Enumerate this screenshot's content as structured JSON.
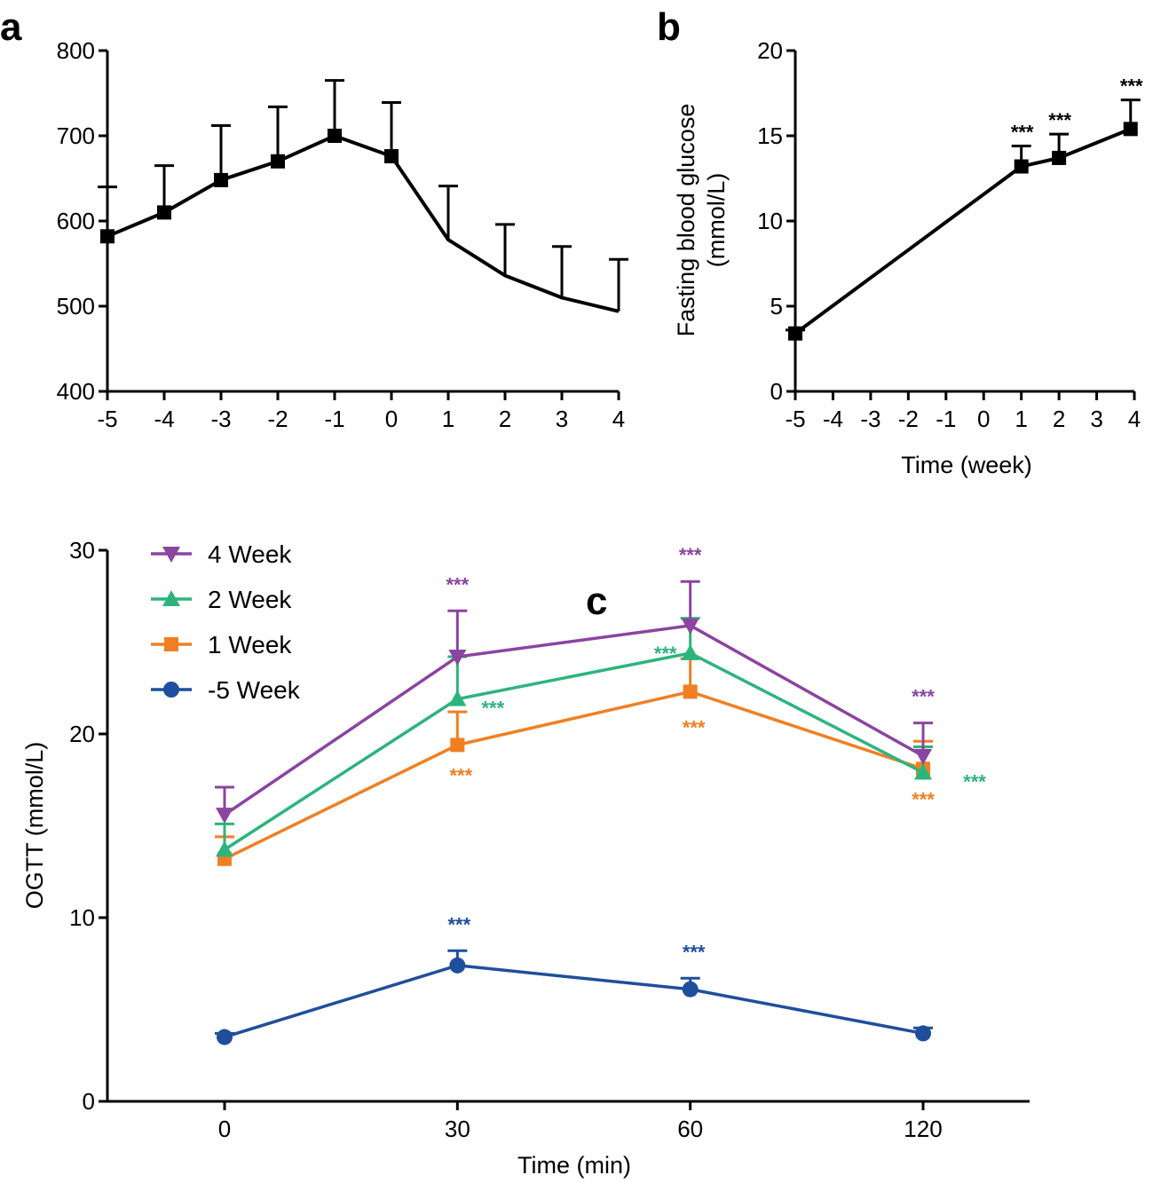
{
  "chart_data": [
    {
      "id": "a",
      "type": "line",
      "panel_label": "a",
      "title": "",
      "xlabel": "",
      "ylabel": "",
      "xlim": [
        -5,
        4
      ],
      "ylim": [
        400,
        800
      ],
      "x_ticks": [
        -5,
        -4,
        -3,
        -2,
        -1,
        0,
        1,
        2,
        3,
        4
      ],
      "y_ticks": [
        400,
        500,
        600,
        700,
        800
      ],
      "x_tick_labels": [
        "-5",
        "-4",
        "-3",
        "-2",
        "-1",
        "0",
        "1",
        "2",
        "3",
        "4"
      ],
      "y_tick_labels": [
        "400",
        "500",
        "600",
        "700",
        "800"
      ],
      "series": [
        {
          "name": "",
          "color": "#000000",
          "marker": "square",
          "points": [
            {
              "x": -5,
              "y": 582,
              "err": 58,
              "marker": true
            },
            {
              "x": -4,
              "y": 610,
              "err": 55,
              "marker": true
            },
            {
              "x": -3,
              "y": 648,
              "err": 64,
              "marker": true
            },
            {
              "x": -2,
              "y": 670,
              "err": 64,
              "marker": true
            },
            {
              "x": -1,
              "y": 700,
              "err": 65,
              "marker": true
            },
            {
              "x": 0,
              "y": 676,
              "err": 63,
              "marker": true
            },
            {
              "x": 1,
              "y": 578,
              "err": 63,
              "marker": false
            },
            {
              "x": 2,
              "y": 536,
              "err": 60,
              "marker": false
            },
            {
              "x": 3,
              "y": 510,
              "err": 60,
              "marker": false
            },
            {
              "x": 4,
              "y": 494,
              "err": 61,
              "marker": false
            }
          ]
        }
      ]
    },
    {
      "id": "b",
      "type": "line",
      "panel_label": "b",
      "title": "",
      "xlabel": "Time (week)",
      "ylabel_lines": [
        "Fasting blood glucose",
        "(mmol/L)"
      ],
      "xlim": [
        -5,
        4
      ],
      "ylim": [
        0,
        20
      ],
      "x_ticks": [
        -5,
        -4,
        -3,
        -2,
        -1,
        0,
        1,
        2,
        3,
        4
      ],
      "y_ticks": [
        0,
        5,
        10,
        15,
        20
      ],
      "x_tick_labels": [
        "-5",
        "-4",
        "-3",
        "-2",
        "-1",
        "0",
        "1",
        "2",
        "3",
        "4"
      ],
      "y_tick_labels": [
        "0",
        "5",
        "10",
        "15",
        "20"
      ],
      "series": [
        {
          "name": "",
          "color": "#000000",
          "marker": "square",
          "points": [
            {
              "x": -5,
              "y": 3.4,
              "err": 0.2,
              "sig": ""
            },
            {
              "x": 1,
              "y": 13.2,
              "err": 1.2,
              "sig": "***"
            },
            {
              "x": 2,
              "y": 13.7,
              "err": 1.4,
              "sig": "***"
            },
            {
              "x": 3.9,
              "y": 15.4,
              "err": 1.7,
              "sig": "***"
            }
          ]
        }
      ]
    },
    {
      "id": "c",
      "type": "line",
      "panel_label": "c",
      "title": "",
      "xlabel": "Time (min)",
      "ylabel": "OGTT (mmol/L)",
      "xlim": [
        -0.5,
        3.5
      ],
      "ylim": [
        0,
        30
      ],
      "categories": [
        "0",
        "30",
        "60",
        "120"
      ],
      "y_ticks": [
        0,
        10,
        20,
        30
      ],
      "y_tick_labels": [
        "0",
        "10",
        "20",
        "30"
      ],
      "series": [
        {
          "name": "4 Week",
          "color": "#8b44a0",
          "marker": "triangle-down",
          "values": [
            15.6,
            24.2,
            25.9,
            18.8
          ],
          "errors": [
            1.5,
            2.5,
            2.4,
            1.8
          ],
          "sig": [
            "",
            "***",
            "***",
            "***"
          ]
        },
        {
          "name": "2 Week",
          "color": "#2db47d",
          "marker": "triangle-up",
          "values": [
            13.7,
            21.9,
            24.4,
            17.9
          ],
          "errors": [
            1.4,
            2.3,
            1.9,
            1.4
          ],
          "sig": [
            "",
            "***",
            "***",
            "***"
          ]
        },
        {
          "name": "1 Week",
          "color": "#f07f22",
          "marker": "square",
          "values": [
            13.2,
            19.4,
            22.3,
            18.1
          ],
          "errors": [
            1.2,
            1.8,
            1.8,
            1.5
          ],
          "sig": [
            "",
            "***",
            "***",
            "***"
          ]
        },
        {
          "name": "-5 Week",
          "color": "#1f4e9c",
          "marker": "circle",
          "values": [
            3.5,
            7.4,
            6.1,
            3.7
          ],
          "errors": [
            0.2,
            0.8,
            0.6,
            0.3
          ],
          "sig": [
            "",
            "***",
            "***",
            ""
          ]
        }
      ]
    }
  ]
}
